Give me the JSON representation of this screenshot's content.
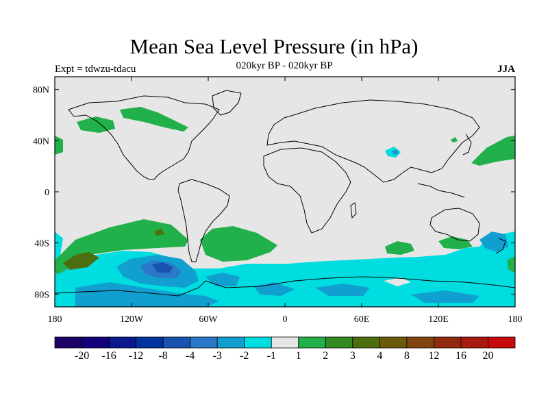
{
  "title": "Mean Sea Level Pressure (in hPa)",
  "subtitle_left": "Expt = tdwzu-tdacu",
  "subtitle_center": "020kyr BP - 020kyr BP",
  "subtitle_right": "JJA",
  "map": {
    "lon_range": [
      -180,
      180
    ],
    "lat_range": [
      -90,
      90
    ],
    "x_ticks": [
      "180",
      "120W",
      "60W",
      "0",
      "60E",
      "120E",
      "180"
    ],
    "y_ticks": [
      "80N",
      "40N",
      "0",
      "40S",
      "80S"
    ],
    "background_color": "#e6e6e6"
  },
  "colorbar": {
    "colors": [
      "#1f0066",
      "#14007a",
      "#0a1a8c",
      "#0033a0",
      "#1a52b0",
      "#2b78c8",
      "#119fd0",
      "#00dde0",
      "#e6e6e6",
      "#22b04a",
      "#338a22",
      "#4d6e0f",
      "#6b5a0a",
      "#7f4410",
      "#902a10",
      "#a81a10",
      "#c80a0a"
    ],
    "labels": [
      "-20",
      "-16",
      "-12",
      "-8",
      "-4",
      "-3",
      "-2",
      "-1",
      "1",
      "2",
      "3",
      "4",
      "8",
      "12",
      "16",
      "20"
    ]
  }
}
